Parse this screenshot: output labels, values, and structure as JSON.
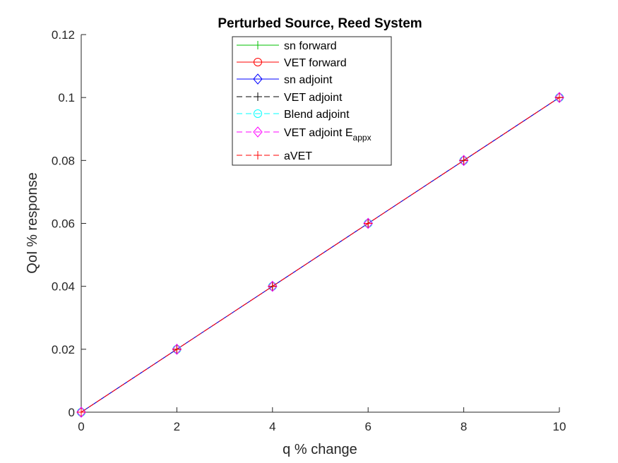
{
  "chart_data": {
    "type": "line",
    "title": "Perturbed Source, Reed System",
    "xlabel": "q % change",
    "ylabel": "QoI % response",
    "xlim": [
      0,
      10
    ],
    "ylim": [
      0,
      0.12
    ],
    "xticks": [
      0,
      2,
      4,
      6,
      8,
      10
    ],
    "xtick_labels": [
      "0",
      "2",
      "4",
      "6",
      "8",
      "10"
    ],
    "yticks": [
      0,
      0.02,
      0.04,
      0.06,
      0.08,
      0.1,
      0.12
    ],
    "ytick_labels": [
      "0",
      "0.02",
      "0.04",
      "0.06",
      "0.08",
      "0.1",
      "0.12"
    ],
    "grid": false,
    "legend_position": "top-center",
    "x": [
      0,
      2,
      4,
      6,
      8,
      10
    ],
    "series": [
      {
        "name": "sn forward",
        "color": "#00c000",
        "linestyle": "solid",
        "marker": "plus",
        "values": [
          0,
          0.02,
          0.04,
          0.06,
          0.08,
          0.1
        ]
      },
      {
        "name": "VET forward",
        "color": "#ff0000",
        "linestyle": "solid",
        "marker": "circle",
        "values": [
          0,
          0.02,
          0.04,
          0.06,
          0.08,
          0.1
        ]
      },
      {
        "name": "sn adjoint",
        "color": "#0000ff",
        "linestyle": "solid",
        "marker": "diamond",
        "values": [
          0,
          0.02,
          0.04,
          0.06,
          0.08,
          0.1
        ]
      },
      {
        "name": "VET adjoint",
        "color": "#000000",
        "linestyle": "dashed",
        "marker": "plus",
        "values": [
          0,
          0.02,
          0.04,
          0.06,
          0.08,
          0.1
        ]
      },
      {
        "name": "Blend adjoint",
        "color": "#00ffff",
        "linestyle": "dashed",
        "marker": "circle",
        "values": [
          0,
          0.02,
          0.04,
          0.06,
          0.08,
          0.1
        ]
      },
      {
        "name": "VET adjoint E",
        "name_subscript": "appx",
        "color": "#ff00ff",
        "linestyle": "dashed",
        "marker": "diamond",
        "values": [
          0,
          0.02,
          0.04,
          0.06,
          0.08,
          0.1
        ]
      },
      {
        "name": "aVET",
        "color": "#ff0000",
        "linestyle": "dashed",
        "marker": "plus",
        "values": [
          0,
          0.02,
          0.04,
          0.06,
          0.08,
          0.1
        ]
      }
    ]
  }
}
